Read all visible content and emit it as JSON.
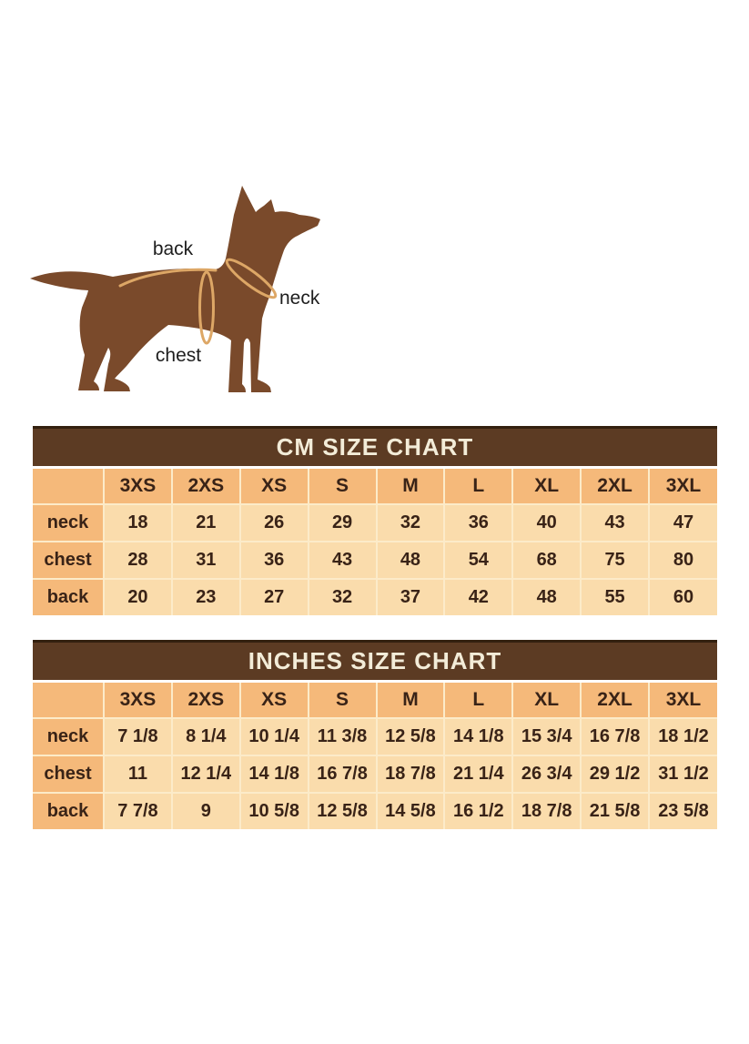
{
  "dog_diagram": {
    "back_label": "back",
    "neck_label": "neck",
    "chest_label": "chest",
    "dog_color": "#7a4a2b",
    "measure_line_color": "#dda766",
    "label_color": "#1e1e1e"
  },
  "chart_data": [
    {
      "type": "table",
      "title": "CM SIZE CHART",
      "columns": [
        "3XS",
        "2XS",
        "XS",
        "S",
        "M",
        "L",
        "XL",
        "2XL",
        "3XL"
      ],
      "rows": [
        {
          "label": "neck",
          "values": [
            18,
            21,
            26,
            29,
            32,
            36,
            40,
            43,
            47
          ]
        },
        {
          "label": "chest",
          "values": [
            28,
            31,
            36,
            43,
            48,
            54,
            68,
            75,
            80
          ]
        },
        {
          "label": "back",
          "values": [
            20,
            23,
            27,
            32,
            37,
            42,
            48,
            55,
            60
          ]
        }
      ]
    },
    {
      "type": "table",
      "title": "INCHES SIZE CHART",
      "columns": [
        "3XS",
        "2XS",
        "XS",
        "S",
        "M",
        "L",
        "XL",
        "2XL",
        "3XL"
      ],
      "rows": [
        {
          "label": "neck",
          "values": [
            "7 1/8",
            "8 1/4",
            "10 1/4",
            "11 3/8",
            "12 5/8",
            "14 1/8",
            "15 3/4",
            "16 7/8",
            "18 1/2"
          ]
        },
        {
          "label": "chest",
          "values": [
            "11",
            "12 1/4",
            "14 1/8",
            "16 7/8",
            "18 7/8",
            "21 1/4",
            "26 3/4",
            "29 1/2",
            "31 1/2"
          ]
        },
        {
          "label": "back",
          "values": [
            "7 7/8",
            "9",
            "10 5/8",
            "12 5/8",
            "14 5/8",
            "16 1/2",
            "18 7/8",
            "21 5/8",
            "23 5/8"
          ]
        }
      ]
    }
  ],
  "colors": {
    "title_bar": "#5c3b23",
    "title_bar_top_edge": "#33200f",
    "title_text": "#f3ecd8",
    "header_cell": "#f5b97a",
    "data_cell": "#fadcac",
    "grid_line": "#fcebc9",
    "table_text": "#392317",
    "background": "#ffffff"
  }
}
